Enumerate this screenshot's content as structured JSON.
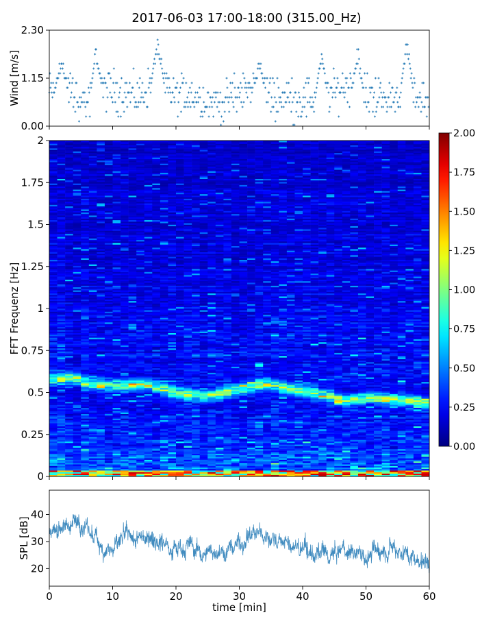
{
  "figure": {
    "title": "2017-06-03 17:00-18:00 (315.00_Hz)"
  },
  "chart_data": [
    {
      "id": "wind",
      "type": "scatter",
      "ylabel": "Wind [m/s]",
      "xlim": [
        0,
        60
      ],
      "ylim": [
        0,
        2.3
      ],
      "yticks": [
        0.0,
        1.15,
        2.3
      ],
      "ytick_labels": [
        "0.00",
        "1.15",
        "2.30"
      ],
      "x_tick_labels_shown": false,
      "quantization_step": 0.115,
      "sample_interval_min": 0.1,
      "series": [
        {
          "color": "#1f77b4",
          "mean_profile": {
            "x": [
              0,
              3,
              5,
              6,
              8,
              12,
              14,
              17,
              18,
              20,
              22,
              25,
              28,
              30,
              32,
              34,
              36,
              38,
              40,
              42,
              45,
              47,
              49,
              51,
              53,
              55,
              57,
              60
            ],
            "y": [
              0.8,
              0.9,
              0.6,
              0.6,
              0.9,
              0.8,
              0.7,
              1.1,
              1.0,
              0.7,
              0.8,
              0.6,
              0.6,
              0.8,
              0.9,
              0.8,
              0.7,
              0.7,
              0.6,
              0.7,
              0.8,
              1.0,
              0.7,
              0.8,
              0.6,
              0.8,
              0.8,
              0.6
            ]
          },
          "spread": 0.35,
          "peaks": [
            {
              "x": 17.1,
              "y": 2.18
            },
            {
              "x": 7.4,
              "y": 1.96
            },
            {
              "x": 48.7,
              "y": 1.96
            },
            {
              "x": 56.5,
              "y": 2.3
            },
            {
              "x": 43.0,
              "y": 1.85
            },
            {
              "x": 33.2,
              "y": 1.7
            },
            {
              "x": 1.9,
              "y": 1.73
            }
          ]
        }
      ]
    },
    {
      "id": "spectrogram",
      "type": "heatmap",
      "ylabel": "FFT Frequenz [Hz]",
      "xlim": [
        0,
        60
      ],
      "ylim": [
        0,
        2
      ],
      "yticks": [
        0,
        0.25,
        0.5,
        0.75,
        1,
        1.25,
        1.5,
        1.75,
        2
      ],
      "ytick_labels": [
        "0",
        "0.25",
        "0.5",
        "0.75",
        "1",
        "1.25",
        "1.5",
        "1.75",
        "2"
      ],
      "x_tick_labels_shown": false,
      "colormap": "jet",
      "colorbar": {
        "min": 0.0,
        "max": 2.0,
        "ticks": [
          0.0,
          0.25,
          0.5,
          0.75,
          1.0,
          1.25,
          1.5,
          1.75,
          2.0
        ],
        "tick_labels": [
          "0.00",
          "0.25",
          "0.50",
          "0.75",
          "1.00",
          "1.25",
          "1.50",
          "1.75",
          "2.00"
        ]
      },
      "background_level": {
        "at_0Hz": 0.28,
        "at_2Hz": 0.14
      },
      "bands": [
        {
          "name": "low-frequency band",
          "freq_center": 0.02,
          "freq_width": 0.04,
          "level": 1.4
        },
        {
          "name": "tonal band",
          "freq_path": {
            "t": [
              0,
              4,
              6,
              10,
              15,
              20,
              25,
              30,
              34,
              38,
              42,
              47,
              50,
              54,
              58,
              60
            ],
            "f": [
              0.58,
              0.59,
              0.55,
              0.54,
              0.55,
              0.5,
              0.48,
              0.52,
              0.55,
              0.52,
              0.5,
              0.45,
              0.47,
              0.46,
              0.45,
              0.43
            ]
          },
          "level": 0.85
        }
      ]
    },
    {
      "id": "spl",
      "type": "line",
      "ylabel": "SPL [dB]",
      "xlabel": "time [min]",
      "xlim": [
        0,
        60
      ],
      "ylim": [
        13.5,
        49
      ],
      "xticks": [
        0,
        10,
        20,
        30,
        40,
        50,
        60
      ],
      "xtick_labels": [
        "0",
        "10",
        "20",
        "30",
        "40",
        "50",
        "60"
      ],
      "yticks": [
        20,
        30,
        40
      ],
      "ytick_labels": [
        "20",
        "30",
        "40"
      ],
      "series": [
        {
          "color": "#1f77b4",
          "mean_profile": {
            "x": [
              0,
              2,
              4,
              5,
              6,
              8,
              10,
              12,
              14,
              16,
              18,
              20,
              22,
              24,
              26,
              28,
              30,
              32,
              34,
              36,
              38,
              40,
              42,
              44,
              46,
              48,
              50,
              52,
              54,
              56,
              58,
              60
            ],
            "y": [
              34,
              36,
              37,
              38,
              34,
              29,
              27,
              31,
              30,
              33,
              30,
              28,
              29,
              25,
              27,
              26,
              30,
              33,
              32,
              31,
              28,
              27,
              25,
              24,
              26,
              27,
              24,
              27,
              30,
              26,
              24,
              23
            ]
          },
          "spread": 3.5
        }
      ]
    }
  ]
}
